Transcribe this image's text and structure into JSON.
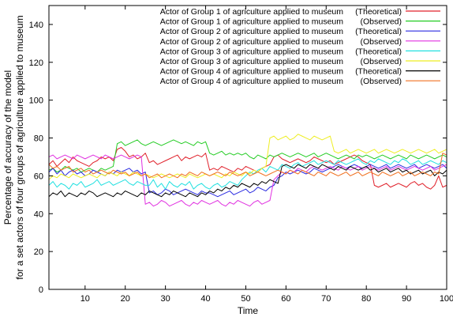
{
  "chart_data": {
    "type": "line",
    "title": "",
    "xlabel": "Time",
    "ylabel": [
      "Percentage of accuracy of the model",
      "for a set actors of four groups of agriculture applied to museum"
    ],
    "xlim": [
      1,
      100
    ],
    "ylim": [
      0,
      150
    ],
    "xticks": [
      10,
      20,
      30,
      40,
      50,
      60,
      70,
      80,
      90,
      100
    ],
    "yticks": [
      0,
      20,
      40,
      60,
      80,
      100,
      120,
      140
    ],
    "grid": false,
    "legend_position": "top-right",
    "segment_count": 20,
    "series": [
      {
        "name": "Actor of Group 1 of agriculture applied to museum",
        "tag": "(Theoretical)",
        "color": "#e0202a",
        "y": [
          66,
          68,
          65,
          67,
          69,
          67,
          70,
          68,
          67,
          66,
          65,
          67,
          68,
          70,
          69,
          70,
          68,
          74,
          75,
          73,
          70,
          71,
          69,
          70,
          72,
          67,
          68,
          66,
          67,
          68,
          69,
          70,
          71,
          68,
          70,
          69,
          70,
          71,
          70,
          72,
          63,
          64,
          63,
          65,
          64,
          63,
          62,
          64,
          63,
          65,
          64,
          63,
          62,
          64,
          65,
          66,
          70,
          71,
          69,
          68,
          67,
          68,
          69,
          68,
          67,
          68,
          70,
          69,
          68,
          67,
          68,
          66,
          67,
          68,
          69,
          70,
          71,
          70,
          68,
          67,
          66,
          55,
          54,
          55,
          56,
          54,
          55,
          56,
          55,
          54,
          56,
          57,
          55,
          56,
          54,
          53,
          55,
          60,
          54,
          55
        ]
      },
      {
        "name": "Actor of Group 1 of agriculture applied to museum",
        "tag": "(Observed)",
        "color": "#22cc22",
        "y": [
          63,
          64,
          62,
          63,
          65,
          64,
          63,
          64,
          62,
          63,
          64,
          63,
          62,
          64,
          63,
          64,
          65,
          77,
          78,
          76,
          77,
          78,
          79,
          77,
          76,
          77,
          78,
          77,
          76,
          77,
          78,
          79,
          78,
          77,
          78,
          77,
          76,
          78,
          77,
          78,
          72,
          71,
          72,
          73,
          71,
          72,
          71,
          72,
          71,
          72,
          70,
          69,
          71,
          70,
          69,
          71,
          70,
          71,
          72,
          71,
          70,
          71,
          72,
          71,
          70,
          71,
          72,
          70,
          71,
          72,
          71,
          70,
          69,
          70,
          71,
          70,
          69,
          71,
          70,
          71,
          70,
          69,
          70,
          71,
          70,
          69,
          70,
          71,
          70,
          69,
          71,
          70,
          69,
          70,
          71,
          70,
          69,
          70,
          71,
          70
        ]
      },
      {
        "name": "Actor of Group 2 of agriculture applied to museum",
        "tag": "(Theoretical)",
        "color": "#2a2ae0",
        "y": [
          62,
          64,
          61,
          63,
          60,
          62,
          63,
          61,
          62,
          60,
          61,
          63,
          62,
          61,
          60,
          62,
          61,
          63,
          62,
          63,
          64,
          62,
          63,
          61,
          62,
          51,
          52,
          50,
          51,
          53,
          52,
          50,
          51,
          52,
          53,
          52,
          51,
          50,
          52,
          51,
          51,
          50,
          49,
          50,
          51,
          52,
          50,
          51,
          52,
          53,
          51,
          52,
          54,
          53,
          52,
          54,
          55,
          59,
          60,
          62,
          61,
          62,
          63,
          62,
          61,
          62,
          64,
          63,
          62,
          63,
          64,
          65,
          66,
          65,
          64,
          65,
          66,
          65,
          64,
          65,
          66,
          65,
          64,
          65,
          66,
          64,
          65,
          66,
          65,
          64,
          65,
          66,
          64,
          65,
          66,
          65,
          64,
          65,
          66,
          64
        ]
      },
      {
        "name": "Actor of Group 2 of agriculture applied to museum",
        "tag": "(Observed)",
        "color": "#e030e0",
        "y": [
          70,
          71,
          69,
          70,
          71,
          70,
          69,
          71,
          70,
          69,
          70,
          71,
          70,
          69,
          71,
          70,
          69,
          70,
          71,
          70,
          69,
          70,
          71,
          70,
          45,
          46,
          44,
          45,
          47,
          46,
          44,
          45,
          46,
          47,
          45,
          44,
          46,
          45,
          47,
          46,
          45,
          46,
          47,
          45,
          44,
          46,
          45,
          47,
          46,
          45,
          44,
          46,
          47,
          45,
          46,
          47,
          58,
          60,
          62,
          61,
          63,
          62,
          64,
          63,
          62,
          64,
          65,
          64,
          63,
          64,
          65,
          64,
          63,
          65,
          64,
          63,
          64,
          65,
          63,
          64,
          65,
          64,
          63,
          64,
          65,
          63,
          64,
          65,
          64,
          63,
          64,
          65,
          64,
          63,
          64,
          65,
          63,
          64,
          65,
          66
        ]
      },
      {
        "name": "Actor of Group 3 of agriculture applied to museum",
        "tag": "(Theoretical)",
        "color": "#22e0e0",
        "y": [
          55,
          57,
          54,
          56,
          55,
          53,
          56,
          55,
          57,
          54,
          55,
          56,
          58,
          55,
          56,
          57,
          55,
          56,
          57,
          58,
          56,
          55,
          57,
          56,
          55,
          55,
          58,
          54,
          56,
          53,
          57,
          55,
          54,
          56,
          55,
          57,
          53,
          55,
          56,
          54,
          53,
          55,
          56,
          54,
          55,
          57,
          56,
          55,
          58,
          60,
          62,
          61,
          63,
          64,
          62,
          65,
          64,
          63,
          66,
          65,
          64,
          66,
          67,
          65,
          66,
          67,
          68,
          66,
          67,
          68,
          67,
          66,
          68,
          67,
          66,
          67,
          68,
          69,
          67,
          66,
          68,
          67,
          69,
          68,
          67,
          66,
          68,
          67,
          69,
          68,
          66,
          67,
          68,
          66,
          67,
          68,
          67,
          66,
          68,
          67
        ]
      },
      {
        "name": "Actor of Group 3 of agriculture applied to museum",
        "tag": "(Observed)",
        "color": "#eeee22",
        "y": [
          58,
          60,
          59,
          61,
          60,
          59,
          61,
          60,
          59,
          60,
          61,
          60,
          59,
          61,
          60,
          62,
          61,
          60,
          62,
          61,
          60,
          62,
          61,
          60,
          61,
          60,
          59,
          60,
          61,
          60,
          59,
          60,
          61,
          60,
          59,
          61,
          60,
          59,
          60,
          61,
          60,
          61,
          60,
          59,
          61,
          60,
          62,
          61,
          60,
          62,
          61,
          63,
          62,
          64,
          65,
          80,
          81,
          79,
          80,
          81,
          79,
          80,
          82,
          81,
          80,
          79,
          81,
          80,
          79,
          80,
          81,
          73,
          72,
          73,
          74,
          72,
          73,
          74,
          73,
          72,
          73,
          74,
          72,
          73,
          74,
          73,
          72,
          73,
          74,
          73,
          72,
          73,
          74,
          73,
          72,
          73,
          74,
          72,
          73,
          74
        ]
      },
      {
        "name": "Actor of Group 4 of agriculture applied to museum",
        "tag": "(Theoretical)",
        "color": "#000000",
        "y": [
          49,
          51,
          50,
          52,
          49,
          51,
          50,
          49,
          51,
          50,
          52,
          51,
          49,
          50,
          51,
          50,
          49,
          51,
          50,
          52,
          51,
          50,
          49,
          51,
          50,
          52,
          51,
          50,
          49,
          51,
          50,
          52,
          51,
          50,
          49,
          51,
          50,
          49,
          51,
          50,
          52,
          51,
          53,
          52,
          54,
          53,
          55,
          54,
          56,
          55,
          54,
          56,
          55,
          57,
          56,
          58,
          57,
          56,
          65,
          66,
          65,
          64,
          66,
          65,
          64,
          66,
          65,
          64,
          66,
          65,
          64,
          63,
          65,
          64,
          63,
          65,
          64,
          63,
          64,
          65,
          63,
          64,
          62,
          63,
          64,
          62,
          63,
          64,
          62,
          63,
          61,
          62,
          63,
          61,
          62,
          63,
          60,
          62,
          61,
          63
        ]
      },
      {
        "name": "Actor of Group 4 of agriculture applied to museum",
        "tag": "(Observed)",
        "color": "#f07020",
        "y": [
          66,
          64,
          65,
          63,
          64,
          65,
          62,
          63,
          64,
          62,
          63,
          61,
          62,
          63,
          62,
          61,
          63,
          62,
          61,
          62,
          60,
          61,
          62,
          60,
          61,
          59,
          60,
          61,
          59,
          60,
          61,
          60,
          59,
          61,
          60,
          62,
          61,
          60,
          62,
          61,
          60,
          61,
          62,
          61,
          60,
          62,
          61,
          60,
          61,
          62,
          60,
          61,
          62,
          61,
          60,
          61,
          62,
          63,
          62,
          61,
          63,
          62,
          61,
          63,
          62,
          61,
          60,
          62,
          61,
          60,
          62,
          61,
          60,
          61,
          62,
          60,
          61,
          62,
          60,
          61,
          62,
          61,
          60,
          62,
          61,
          60,
          61,
          62,
          60,
          61,
          62,
          60,
          61,
          62,
          61,
          60,
          62,
          61,
          72,
          71
        ]
      }
    ]
  }
}
